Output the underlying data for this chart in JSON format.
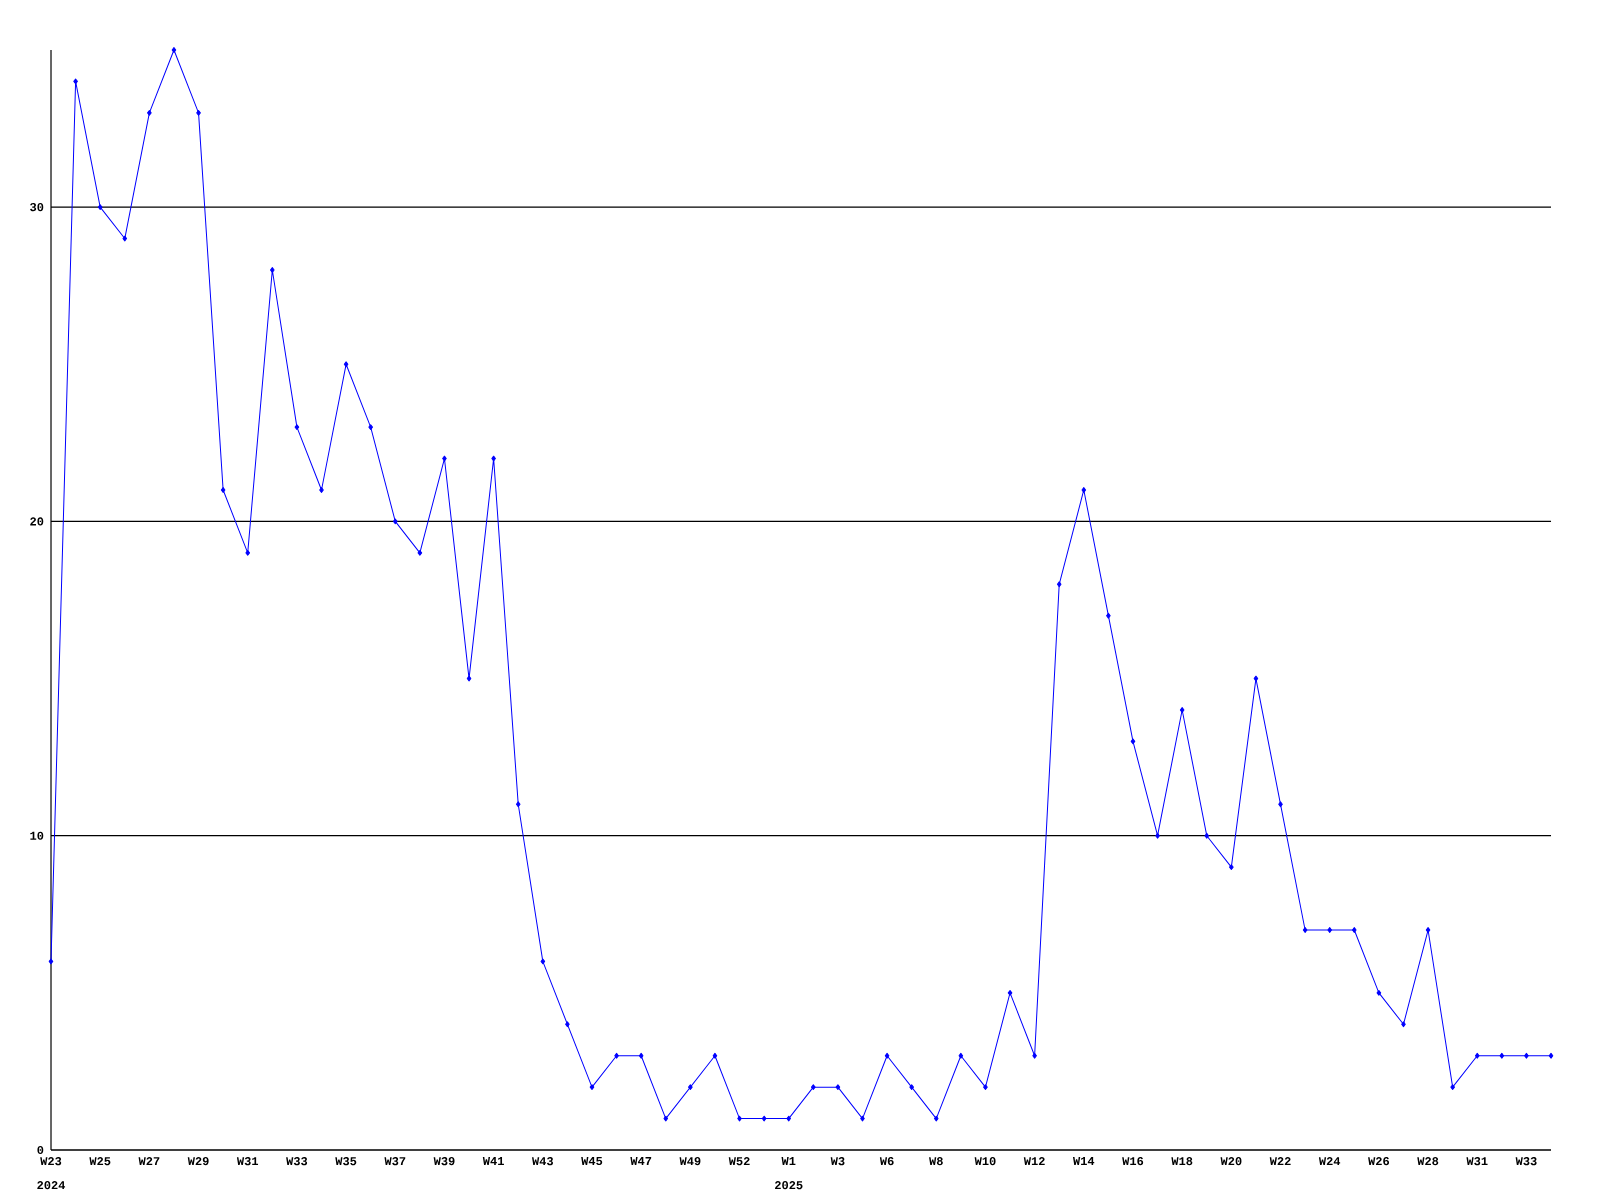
{
  "chart_data": {
    "type": "line",
    "categories": [
      "W23",
      null,
      "W25",
      null,
      "W27",
      null,
      "W29",
      null,
      "W31",
      null,
      "W33",
      null,
      "W35",
      null,
      "W37",
      null,
      "W39",
      null,
      "W41",
      null,
      "W43",
      null,
      "W45",
      null,
      "W47",
      null,
      "W49",
      null,
      "W52",
      null,
      "W1",
      null,
      "W3",
      null,
      "W6",
      null,
      "W8",
      null,
      "W10",
      null,
      "W12",
      null,
      "W14",
      null,
      "W16",
      null,
      "W18",
      null,
      "W20",
      null,
      "W22",
      null,
      "W24",
      null,
      "W26",
      null,
      "W28",
      null,
      "W31",
      null,
      "W33",
      null
    ],
    "series": [
      {
        "color": "#0000ff",
        "values": [
          6,
          34,
          30,
          29,
          33,
          35,
          33,
          21,
          19,
          28,
          23,
          21,
          25,
          23,
          20,
          19,
          22,
          15,
          22,
          11,
          6,
          4,
          2,
          3,
          3,
          1,
          2,
          3,
          1,
          1,
          1,
          2,
          2,
          1,
          3,
          2,
          1,
          3,
          2,
          5,
          3,
          18,
          21,
          17,
          13,
          10,
          14,
          10,
          9,
          15,
          11,
          7,
          7,
          7,
          5,
          4,
          7,
          2,
          3,
          3,
          3,
          3
        ]
      }
    ],
    "ylim": [
      0,
      35
    ],
    "yticks": [
      0,
      10,
      20,
      30
    ],
    "grid": "y",
    "marker": "diamond",
    "line_style": "solid",
    "annotations": [
      "2024",
      "2025"
    ]
  }
}
